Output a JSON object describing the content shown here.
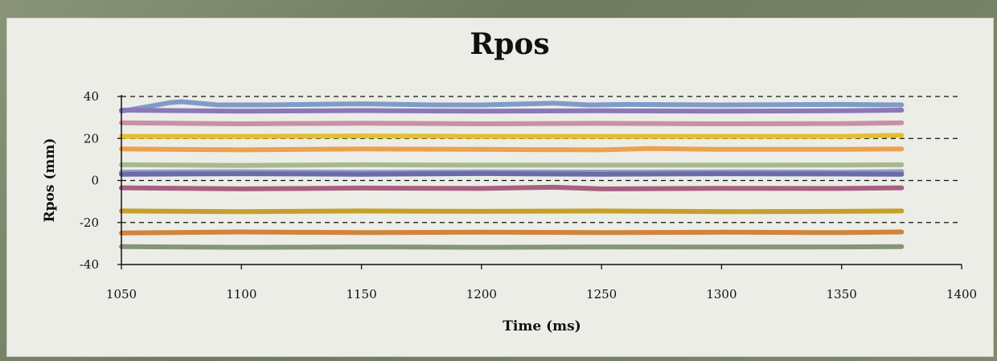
{
  "chart_data": {
    "type": "line",
    "title": "Rpos",
    "xlabel": "Time (ms)",
    "ylabel": "Rpos (mm)",
    "xlim": [
      1050,
      1400
    ],
    "ylim": [
      -40,
      40
    ],
    "x_ticks": [
      1050,
      1100,
      1150,
      1200,
      1250,
      1300,
      1350,
      1400
    ],
    "y_ticks": [
      40,
      20,
      0,
      -20,
      -40
    ],
    "y_tick_labels": [
      "40",
      "20",
      "0",
      "-20",
      "-40"
    ],
    "grid": "horizontal dashed",
    "legend": "none",
    "series": [
      {
        "color": "#7f9cc9",
        "x": [
          1050,
          1060,
          1070,
          1075,
          1080,
          1090,
          1110,
          1150,
          1180,
          1200,
          1220,
          1230,
          1245,
          1260,
          1300,
          1350,
          1375
        ],
        "values": [
          33,
          35,
          37,
          37.5,
          37,
          36,
          36,
          36.5,
          36,
          36,
          36.5,
          36.8,
          36,
          36.2,
          36,
          36.2,
          36
        ]
      },
      {
        "color": "#8a78b8",
        "x": [
          1050,
          1100,
          1150,
          1200,
          1250,
          1300,
          1350,
          1375
        ],
        "values": [
          33.5,
          33,
          33.3,
          33,
          33.2,
          33,
          33.2,
          33.5
        ]
      },
      {
        "color": "#cc8fa8",
        "x": [
          1050,
          1100,
          1150,
          1200,
          1250,
          1300,
          1350,
          1375
        ],
        "values": [
          27.5,
          27,
          27.3,
          27,
          27.2,
          27,
          27.1,
          27.5
        ]
      },
      {
        "color": "#e4c02e",
        "x": [
          1050,
          1100,
          1150,
          1200,
          1250,
          1300,
          1350,
          1375
        ],
        "values": [
          21,
          21,
          21.2,
          21,
          21,
          21,
          21,
          21.5
        ]
      },
      {
        "color": "#eda050",
        "x": [
          1050,
          1100,
          1150,
          1200,
          1250,
          1270,
          1300,
          1350,
          1375
        ],
        "values": [
          15,
          14.6,
          15,
          14.8,
          14.6,
          15.2,
          14.8,
          14.8,
          15
        ]
      },
      {
        "color": "#a9b98f",
        "x": [
          1050,
          1100,
          1150,
          1200,
          1250,
          1300,
          1350,
          1375
        ],
        "values": [
          7.5,
          7.2,
          7.5,
          7.3,
          7.3,
          7.3,
          7.4,
          7.5
        ]
      },
      {
        "color": "#8d9cc8",
        "x": [
          1050,
          1100,
          1150,
          1200,
          1250,
          1300,
          1350,
          1375
        ],
        "values": [
          4,
          4.2,
          3.9,
          4.1,
          4,
          4.1,
          4,
          4.2
        ]
      },
      {
        "color": "#6e6aa8",
        "x": [
          1050,
          1100,
          1150,
          1200,
          1250,
          1300,
          1350,
          1375
        ],
        "values": [
          3,
          3.2,
          3,
          3.3,
          3,
          3.2,
          3.1,
          3
        ]
      },
      {
        "color": "#a86080",
        "x": [
          1050,
          1100,
          1150,
          1200,
          1230,
          1250,
          1300,
          1350,
          1375
        ],
        "values": [
          -3.5,
          -4,
          -3.6,
          -3.8,
          -3.2,
          -4,
          -3.7,
          -3.8,
          -3.5
        ]
      },
      {
        "color": "#c6a02a",
        "x": [
          1050,
          1100,
          1150,
          1200,
          1250,
          1300,
          1350,
          1375
        ],
        "values": [
          -14.5,
          -14.8,
          -14.5,
          -14.7,
          -14.5,
          -14.8,
          -14.7,
          -14.5
        ]
      },
      {
        "color": "#d0843e",
        "x": [
          1050,
          1100,
          1150,
          1200,
          1250,
          1300,
          1350,
          1375
        ],
        "values": [
          -25,
          -24.5,
          -24.8,
          -24.6,
          -24.8,
          -24.6,
          -24.8,
          -24.5
        ]
      },
      {
        "color": "#879478",
        "x": [
          1050,
          1100,
          1150,
          1200,
          1250,
          1300,
          1350,
          1375
        ],
        "values": [
          -31.5,
          -31.8,
          -31.6,
          -31.8,
          -31.6,
          -31.7,
          -31.6,
          -31.5
        ]
      }
    ]
  }
}
